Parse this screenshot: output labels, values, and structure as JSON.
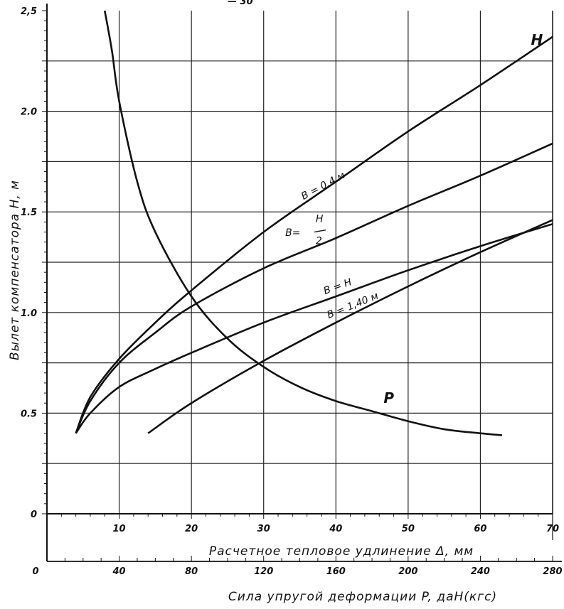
{
  "chart_data": {
    "type": "line",
    "ylabel": "Вылет компенсатора H, м",
    "xlabel": "Расчетное тепловое удлинение Δ, мм",
    "xlabel2": "Сила упругой деформации P, даН(кгс)",
    "ylim": [
      0,
      2.5
    ],
    "xlim": [
      0,
      70
    ],
    "x2lim": [
      0,
      280
    ],
    "grid": true,
    "y_ticks": [
      "0",
      "0.5",
      "1.0",
      "1.5",
      "2.0",
      "2,5"
    ],
    "y_tick_values": [
      0,
      0.5,
      1.0,
      1.5,
      2.0,
      2.5
    ],
    "x_ticks": [
      "10",
      "20",
      "30",
      "40",
      "50",
      "60",
      "70"
    ],
    "x_tick_values": [
      10,
      20,
      30,
      40,
      50,
      60,
      70
    ],
    "x2_ticks": [
      "0",
      "40",
      "80",
      "120",
      "160",
      "200",
      "240",
      "280"
    ],
    "x2_tick_values": [
      0,
      40,
      80,
      120,
      160,
      200,
      240,
      280
    ],
    "series": [
      {
        "name": "H",
        "axis": "x",
        "x": [
          4,
          6,
          10,
          15,
          20,
          30,
          40,
          50,
          60,
          70
        ],
        "y": [
          0.4,
          0.58,
          0.77,
          0.95,
          1.11,
          1.4,
          1.65,
          1.9,
          2.13,
          2.37
        ]
      },
      {
        "name": "B=0,4 м",
        "axis": "x",
        "x": [
          4,
          6,
          10,
          15,
          20,
          30,
          40,
          50,
          60,
          70
        ],
        "y": [
          0.4,
          0.56,
          0.75,
          0.9,
          1.03,
          1.22,
          1.37,
          1.53,
          1.68,
          1.84
        ]
      },
      {
        "name": "B=H/2",
        "axis": "x",
        "x": [
          4,
          6,
          10,
          15,
          20,
          30,
          40,
          50,
          60,
          70
        ],
        "y": [
          0.4,
          0.5,
          0.63,
          0.72,
          0.8,
          0.95,
          1.08,
          1.21,
          1.33,
          1.44
        ]
      },
      {
        "name": "B=H",
        "axis": "x",
        "x": [
          14,
          20,
          30,
          40,
          50,
          60,
          70
        ],
        "y": [
          0.4,
          0.55,
          0.76,
          0.95,
          1.13,
          1.3,
          1.46
        ]
      },
      {
        "name": "P",
        "axis": "x2",
        "x": [
          32,
          36,
          40,
          50,
          60,
          80,
          100,
          120,
          140,
          160,
          180,
          200,
          220,
          240,
          252
        ],
        "y": [
          2.5,
          2.3,
          2.05,
          1.65,
          1.4,
          1.08,
          0.87,
          0.73,
          0.63,
          0.56,
          0.51,
          0.46,
          0.42,
          0.4,
          0.39
        ]
      }
    ],
    "annotations": [
      {
        "text": "H",
        "near": "end of top curve",
        "x": 67,
        "y": 2.33
      },
      {
        "text": "B = 0,4 м",
        "x": 35.5,
        "y": 1.56
      },
      {
        "text": "B=",
        "x": 33,
        "y": 1.38
      },
      {
        "text": "H",
        "x": 37.2,
        "y": 1.45
      },
      {
        "text": "2",
        "x": 37.2,
        "y": 1.34
      },
      {
        "text": "B = H",
        "x": 38.5,
        "y": 1.09
      },
      {
        "text": "B = 1,40 м",
        "x": 39,
        "y": 0.97
      },
      {
        "text": "P",
        "x": 46.6,
        "y": 0.55
      }
    ],
    "header_fragment": "— 30"
  }
}
